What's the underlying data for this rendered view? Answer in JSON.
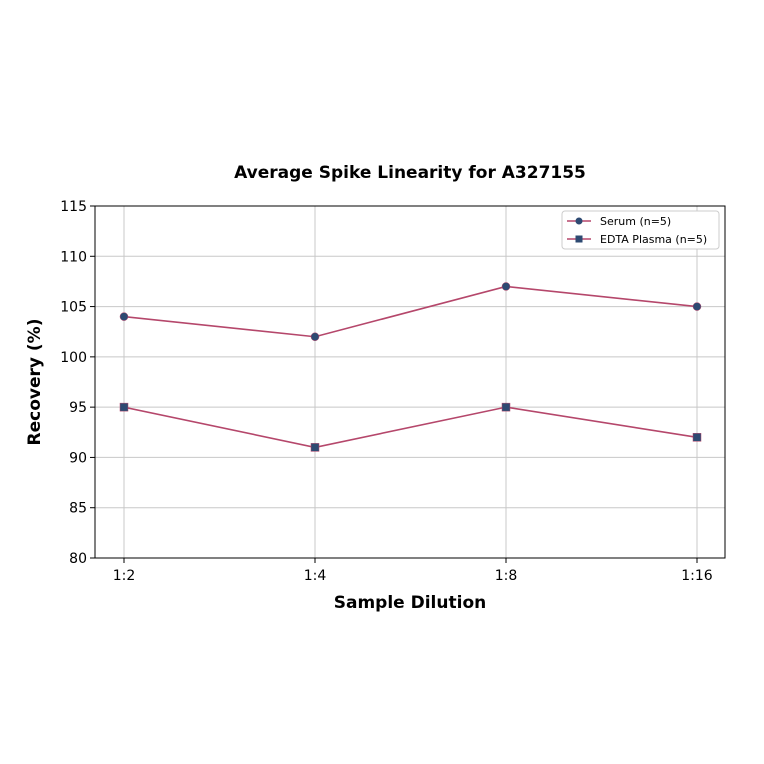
{
  "chart_data": {
    "type": "line",
    "title": "Average Spike Linearity for A327155",
    "xlabel": "Sample Dilution",
    "ylabel": "Recovery (%)",
    "categories": [
      "1:2",
      "1:4",
      "1:8",
      "1:16"
    ],
    "ylim": [
      80,
      115
    ],
    "yticks": [
      80,
      85,
      90,
      95,
      100,
      105,
      110,
      115
    ],
    "grid": true,
    "legend_position": "upper right",
    "series": [
      {
        "name": "Serum (n=5)",
        "marker": "circle",
        "values": [
          104,
          102,
          107,
          105
        ]
      },
      {
        "name": "EDTA Plasma (n=5)",
        "marker": "square",
        "values": [
          95,
          91,
          95,
          92
        ]
      }
    ]
  },
  "colors": {
    "line": "#b5476b",
    "marker": "#2e4a72",
    "grid": "#c8c8c8"
  }
}
